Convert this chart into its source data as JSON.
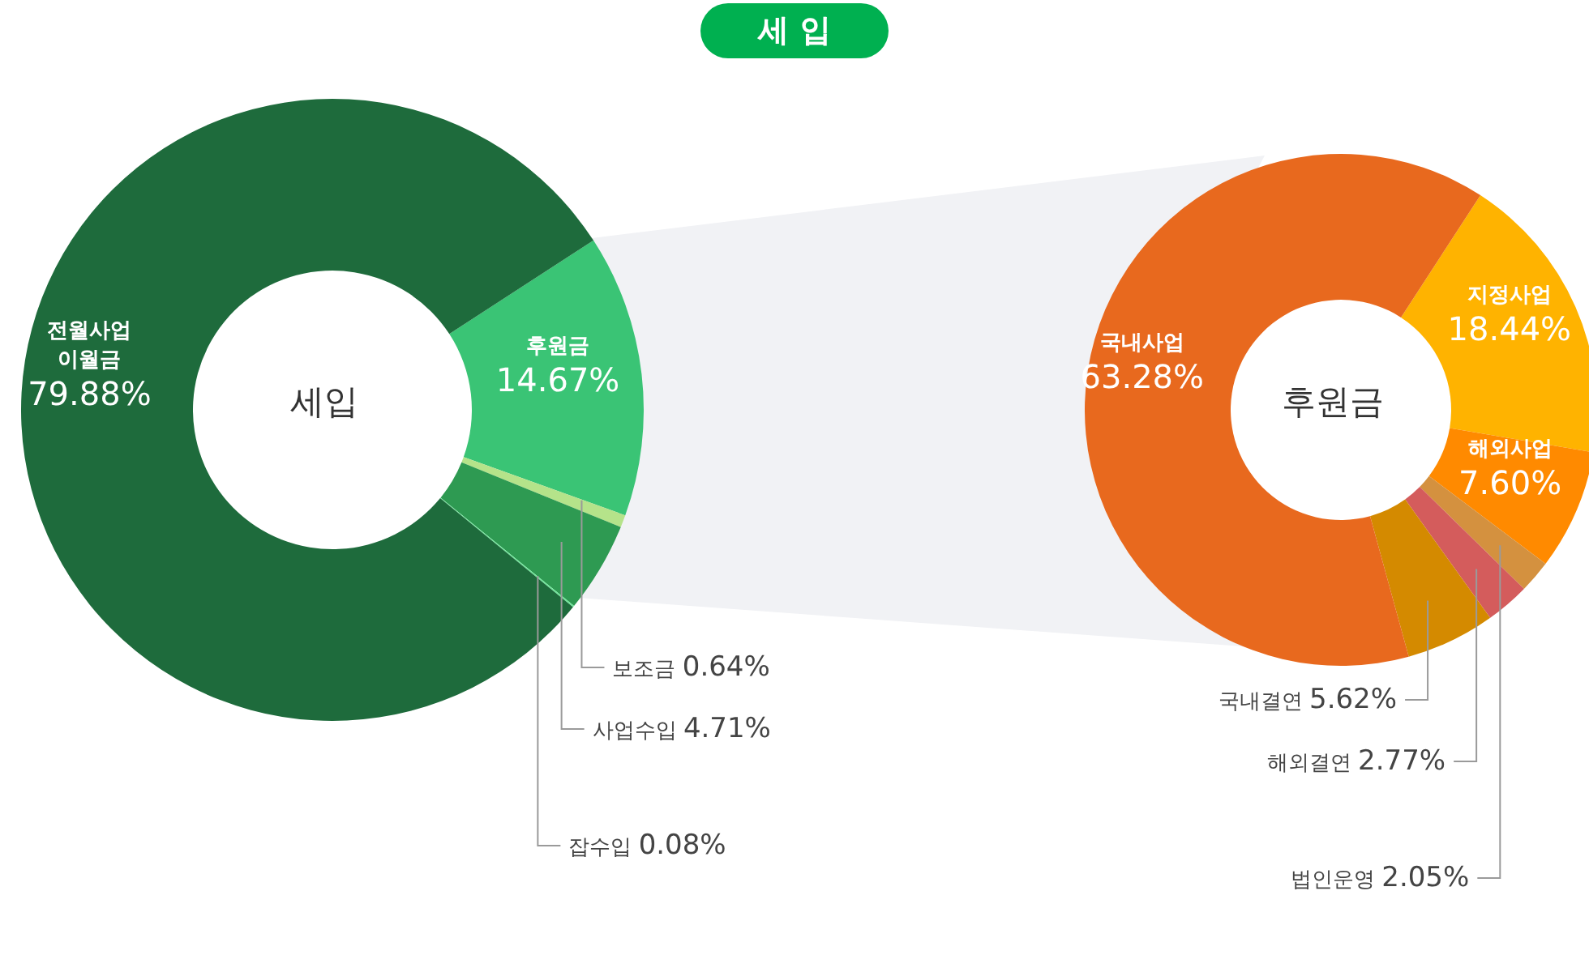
{
  "chart_data": [
    {
      "type": "donut",
      "title": "세 입",
      "categories": [
        "후원금",
        "보조금",
        "사업수입",
        "잡수입",
        "전월사업 이월금"
      ],
      "values": [
        14.67,
        0.64,
        4.71,
        0.08,
        79.88
      ],
      "colors": [
        "#3ac475",
        "#b5e38a",
        "#2e9a52",
        "#6ee89a",
        "#1e6b3c"
      ],
      "value_labels": [
        "14.67%",
        "0.64%",
        "4.71%",
        "0.08%",
        "79.88%"
      ],
      "legend": false,
      "annotations": [
        "세입"
      ]
    },
    {
      "type": "donut",
      "categories": [
        "지정사업",
        "해외사업",
        "법인운영",
        "해외결연",
        "국내결연",
        "국내사업"
      ],
      "values": [
        18.44,
        7.6,
        2.05,
        2.77,
        5.62,
        63.28
      ],
      "colors": [
        "#ffb300",
        "#ff8a00",
        "#d4913f",
        "#d45c5c",
        "#d48a00",
        "#e8691e"
      ],
      "value_labels": [
        "18.44%",
        "7.60%",
        "2.05%",
        "2.77%",
        "5.62%",
        "63.28%"
      ],
      "legend": false,
      "annotations": [
        "후원금"
      ]
    }
  ]
}
